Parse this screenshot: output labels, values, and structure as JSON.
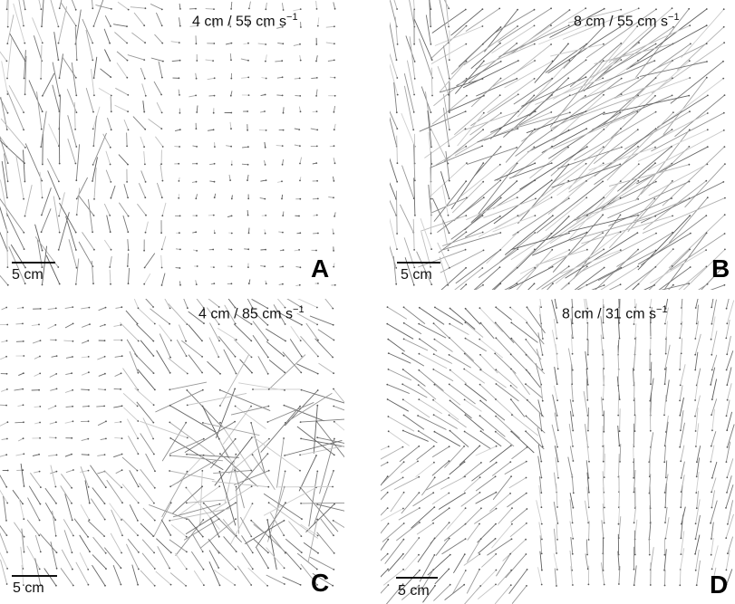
{
  "panels": [
    {
      "letter": "A",
      "title_main": "4 cm / 55 cm s",
      "title_exp": "−1",
      "scale_label": "5 cm"
    },
    {
      "letter": "B",
      "title_main": "8 cm / 55 cm s",
      "title_exp": "−1",
      "scale_label": "5 cm"
    },
    {
      "letter": "C",
      "title_main": "4 cm / 85 cm s",
      "title_exp": "−1",
      "scale_label": "5 cm"
    },
    {
      "letter": "D",
      "title_main": "8 cm / 31 cm s",
      "title_exp": "−1",
      "scale_label": "5 cm"
    }
  ]
}
